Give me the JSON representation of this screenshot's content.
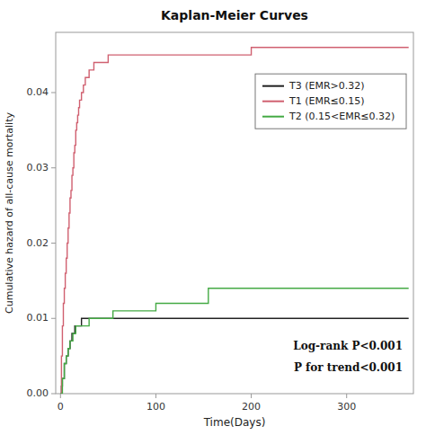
{
  "chart_data": {
    "type": "step",
    "title": "Kaplan-Meier Curves",
    "x_label": "Time(Days)",
    "y_label": "Cumulative hazard of all-cause mortality",
    "xlim": [
      -5,
      370
    ],
    "ylim": [
      0,
      0.048
    ],
    "xticks": [
      0,
      100,
      200,
      300
    ],
    "yticks": [
      {
        "value": 0.0,
        "label": "0.00"
      },
      {
        "value": 0.01,
        "label": "0.01"
      },
      {
        "value": 0.02,
        "label": "0.02"
      },
      {
        "value": 0.03,
        "label": "0.03"
      },
      {
        "value": 0.04,
        "label": "0.04"
      }
    ],
    "grid": false,
    "legend": "upper-right",
    "annotations": [
      "Log-rank P<0.001",
      "P for trend<0.001"
    ],
    "series": [
      {
        "name": "T3 (EMR>0.32)",
        "color": "#222222",
        "x": [
          0,
          1,
          2,
          4,
          6,
          8,
          10,
          12,
          15,
          18,
          22,
          28,
          35,
          45,
          65,
          365
        ],
        "values": [
          0,
          0.001,
          0.002,
          0.004,
          0.005,
          0.006,
          0.007,
          0.008,
          0.009,
          0.009,
          0.01,
          0.01,
          0.01,
          0.01,
          0.01,
          0.01
        ]
      },
      {
        "name": "T1 (EMR≤0.15)",
        "color": "#d06070",
        "x": [
          0,
          1,
          2,
          3,
          4,
          5,
          6,
          7,
          8,
          9,
          10,
          11,
          12,
          13,
          14,
          15,
          16,
          17,
          18,
          19,
          20,
          22,
          24,
          26,
          28,
          30,
          32,
          35,
          40,
          45,
          50,
          55,
          60,
          65,
          70,
          80,
          90,
          100,
          120,
          150,
          200,
          270,
          280,
          365
        ],
        "values": [
          0,
          0.005,
          0.009,
          0.012,
          0.014,
          0.016,
          0.018,
          0.02,
          0.022,
          0.024,
          0.026,
          0.027,
          0.029,
          0.03,
          0.032,
          0.033,
          0.035,
          0.036,
          0.037,
          0.038,
          0.039,
          0.04,
          0.041,
          0.042,
          0.042,
          0.043,
          0.043,
          0.044,
          0.044,
          0.044,
          0.045,
          0.045,
          0.045,
          0.045,
          0.045,
          0.045,
          0.045,
          0.045,
          0.045,
          0.045,
          0.046,
          0.046,
          0.046,
          0.046
        ]
      },
      {
        "name": "T2 (0.15<EMR≤0.32)",
        "color": "#44aa44",
        "x": [
          0,
          2,
          4,
          6,
          8,
          10,
          13,
          16,
          20,
          25,
          30,
          40,
          55,
          75,
          100,
          150,
          155,
          365
        ],
        "values": [
          0,
          0.002,
          0.004,
          0.005,
          0.006,
          0.007,
          0.008,
          0.009,
          0.009,
          0.009,
          0.01,
          0.01,
          0.011,
          0.011,
          0.012,
          0.012,
          0.014,
          0.014
        ]
      }
    ]
  }
}
